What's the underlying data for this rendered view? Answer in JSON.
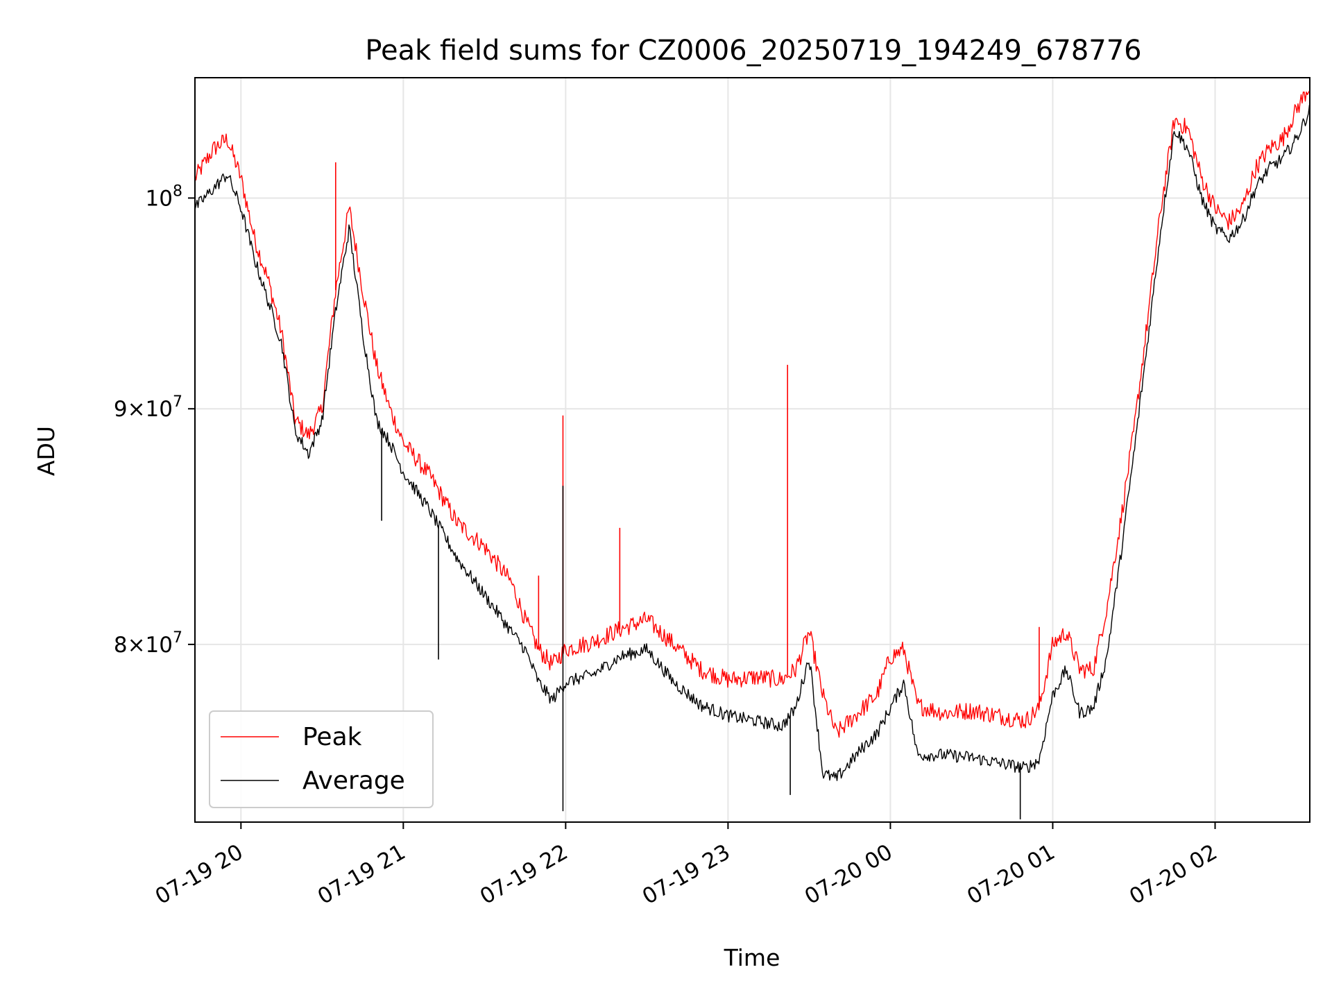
{
  "chart_data": {
    "type": "line",
    "title": "Peak field sums for CZ0006_20250719_194249_678776",
    "xlabel": "Time",
    "ylabel": "ADU",
    "y_scale": "log",
    "grid": true,
    "legend_position": "lower-left",
    "xlim": [
      "2025-07-19T19:43",
      "2025-07-20T02:35"
    ],
    "ylim": [
      73200000,
      106200000
    ],
    "x_ticks": [
      {
        "t": "2025-07-19T20:00",
        "label": "07-19 20"
      },
      {
        "t": "2025-07-19T21:00",
        "label": "07-19 21"
      },
      {
        "t": "2025-07-19T22:00",
        "label": "07-19 22"
      },
      {
        "t": "2025-07-19T23:00",
        "label": "07-19 23"
      },
      {
        "t": "2025-07-20T00:00",
        "label": "07-20 00"
      },
      {
        "t": "2025-07-20T01:00",
        "label": "07-20 01"
      },
      {
        "t": "2025-07-20T02:00",
        "label": "07-20 02"
      }
    ],
    "y_ticks": [
      {
        "v": 80000000,
        "base": "8",
        "exp": "7"
      },
      {
        "v": 90000000,
        "base": "9",
        "exp": "7"
      },
      {
        "v": 100000000,
        "base": "",
        "exp": "8"
      }
    ],
    "series": [
      {
        "name": "Peak",
        "color": "#ff0000",
        "x": [
          "2025-07-19T19:43",
          "2025-07-19T19:50",
          "2025-07-19T19:55",
          "2025-07-19T20:00",
          "2025-07-19T20:05",
          "2025-07-19T20:10",
          "2025-07-19T20:15",
          "2025-07-19T20:20",
          "2025-07-19T20:25",
          "2025-07-19T20:30",
          "2025-07-19T20:35",
          "2025-07-19T20:40",
          "2025-07-19T20:45",
          "2025-07-19T20:50",
          "2025-07-19T20:55",
          "2025-07-19T21:00",
          "2025-07-19T21:10",
          "2025-07-19T21:20",
          "2025-07-19T21:30",
          "2025-07-19T21:40",
          "2025-07-19T21:45",
          "2025-07-19T21:50",
          "2025-07-19T21:55",
          "2025-07-19T22:00",
          "2025-07-19T22:10",
          "2025-07-19T22:20",
          "2025-07-19T22:30",
          "2025-07-19T22:40",
          "2025-07-19T22:50",
          "2025-07-19T23:00",
          "2025-07-19T23:10",
          "2025-07-19T23:20",
          "2025-07-19T23:25",
          "2025-07-19T23:30",
          "2025-07-19T23:35",
          "2025-07-19T23:40",
          "2025-07-19T23:50",
          "2025-07-19T23:55",
          "2025-07-20T00:00",
          "2025-07-20T00:05",
          "2025-07-20T00:10",
          "2025-07-20T00:20",
          "2025-07-20T00:30",
          "2025-07-20T00:40",
          "2025-07-20T00:50",
          "2025-07-20T00:55",
          "2025-07-20T01:00",
          "2025-07-20T01:05",
          "2025-07-20T01:10",
          "2025-07-20T01:15",
          "2025-07-20T01:20",
          "2025-07-20T01:25",
          "2025-07-20T01:30",
          "2025-07-20T01:35",
          "2025-07-20T01:40",
          "2025-07-20T01:45",
          "2025-07-20T01:50",
          "2025-07-20T01:55",
          "2025-07-20T02:00",
          "2025-07-20T02:05",
          "2025-07-20T02:10",
          "2025-07-20T02:15",
          "2025-07-20T02:20",
          "2025-07-20T02:25",
          "2025-07-20T02:30",
          "2025-07-20T02:35"
        ],
        "y": [
          101000000,
          102500000,
          103000000,
          101000000,
          98000000,
          96000000,
          93500000,
          89500000,
          88800000,
          90000000,
          95500000,
          99500000,
          95500000,
          92000000,
          90000000,
          88500000,
          87000000,
          85000000,
          84000000,
          82500000,
          81000000,
          79800000,
          79200000,
          79800000,
          80100000,
          80600000,
          81000000,
          80000000,
          79000000,
          78600000,
          78700000,
          78600000,
          79000000,
          80500000,
          78000000,
          76500000,
          77500000,
          78000000,
          79500000,
          79800000,
          77600000,
          77300000,
          77400000,
          77200000,
          77000000,
          77500000,
          80000000,
          80500000,
          79000000,
          79000000,
          81500000,
          85000000,
          89000000,
          94000000,
          99500000,
          104000000,
          103500000,
          101000000,
          99500000,
          98800000,
          99500000,
          101500000,
          102500000,
          103000000,
          104500000,
          105800000
        ],
        "spikes": [
          {
            "t": "2025-07-19T20:35",
            "y": 101800000
          },
          {
            "t": "2025-07-19T21:50",
            "y": 82800000
          },
          {
            "t": "2025-07-19T21:59",
            "y": 89700000
          },
          {
            "t": "2025-07-19T22:20",
            "y": 84800000
          },
          {
            "t": "2025-07-19T23:22",
            "y": 92000000
          },
          {
            "t": "2025-07-20T00:55",
            "y": 80700000
          }
        ]
      },
      {
        "name": "Average",
        "color": "#000000",
        "x": [
          "2025-07-19T19:43",
          "2025-07-19T19:50",
          "2025-07-19T19:55",
          "2025-07-19T20:00",
          "2025-07-19T20:05",
          "2025-07-19T20:10",
          "2025-07-19T20:15",
          "2025-07-19T20:20",
          "2025-07-19T20:25",
          "2025-07-19T20:30",
          "2025-07-19T20:35",
          "2025-07-19T20:40",
          "2025-07-19T20:45",
          "2025-07-19T20:50",
          "2025-07-19T20:55",
          "2025-07-19T21:00",
          "2025-07-19T21:10",
          "2025-07-19T21:20",
          "2025-07-19T21:30",
          "2025-07-19T21:40",
          "2025-07-19T21:45",
          "2025-07-19T21:50",
          "2025-07-19T21:55",
          "2025-07-19T22:00",
          "2025-07-19T22:10",
          "2025-07-19T22:20",
          "2025-07-19T22:30",
          "2025-07-19T22:40",
          "2025-07-19T22:50",
          "2025-07-19T23:00",
          "2025-07-19T23:10",
          "2025-07-19T23:20",
          "2025-07-19T23:25",
          "2025-07-19T23:30",
          "2025-07-19T23:35",
          "2025-07-19T23:40",
          "2025-07-19T23:50",
          "2025-07-19T23:55",
          "2025-07-20T00:00",
          "2025-07-20T00:05",
          "2025-07-20T00:10",
          "2025-07-20T00:20",
          "2025-07-20T00:30",
          "2025-07-20T00:40",
          "2025-07-20T00:50",
          "2025-07-20T00:55",
          "2025-07-20T01:00",
          "2025-07-20T01:05",
          "2025-07-20T01:10",
          "2025-07-20T01:15",
          "2025-07-20T01:20",
          "2025-07-20T01:25",
          "2025-07-20T01:30",
          "2025-07-20T01:35",
          "2025-07-20T01:40",
          "2025-07-20T01:45",
          "2025-07-20T01:50",
          "2025-07-20T01:55",
          "2025-07-20T02:00",
          "2025-07-20T02:05",
          "2025-07-20T02:10",
          "2025-07-20T02:15",
          "2025-07-20T02:20",
          "2025-07-20T02:25",
          "2025-07-20T02:30",
          "2025-07-20T02:35"
        ],
        "y": [
          99500000,
          100500000,
          101200000,
          99500000,
          97000000,
          95000000,
          93000000,
          89000000,
          88000000,
          89500000,
          94500000,
          98500000,
          93500000,
          89500000,
          88500000,
          87200000,
          85500000,
          83500000,
          82000000,
          80500000,
          79800000,
          78500000,
          77800000,
          78500000,
          78800000,
          79500000,
          79800000,
          78500000,
          77600000,
          77200000,
          77000000,
          76800000,
          77500000,
          79500000,
          75000000,
          74800000,
          76000000,
          76500000,
          77500000,
          78500000,
          75700000,
          75700000,
          75600000,
          75400000,
          75200000,
          75500000,
          78000000,
          79000000,
          77300000,
          77500000,
          79500000,
          83500000,
          88000000,
          93000000,
          98500000,
          103500000,
          102500000,
          100000000,
          98500000,
          98000000,
          98800000,
          100500000,
          101500000,
          102000000,
          103000000,
          104500000
        ],
        "spikes": [
          {
            "t": "2025-07-19T20:52",
            "y": 85100000
          },
          {
            "t": "2025-07-19T21:13",
            "y": 79400000
          },
          {
            "t": "2025-07-19T21:59",
            "y": 73600000
          },
          {
            "t": "2025-07-19T21:59",
            "y": 86600000
          },
          {
            "t": "2025-07-19T23:23",
            "y": 74200000
          },
          {
            "t": "2025-07-20T00:48",
            "y": 73300000
          }
        ]
      }
    ]
  }
}
